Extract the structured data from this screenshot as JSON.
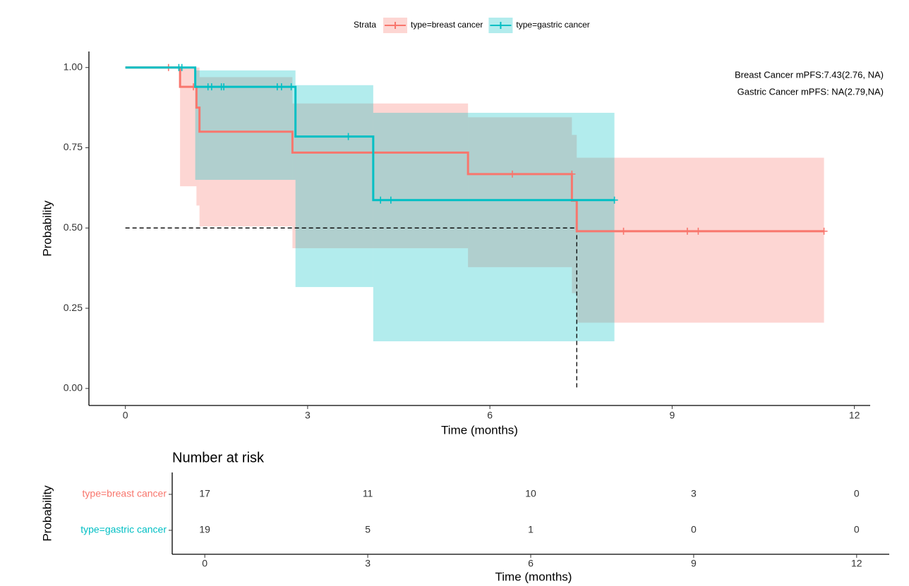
{
  "chart_data": [
    {
      "type": "survival",
      "legend_title": "Strata",
      "x_label": "Time (months)",
      "y_label": "Probability",
      "annotations": [
        "Breast Cancer mPFS:7.43(2.76, NA)",
        "Gastric Cancer mPFS: NA(2.79,NA)"
      ],
      "xlim": [
        -0.6,
        12.26
      ],
      "xticks": [
        0,
        3,
        6,
        9,
        12
      ],
      "ylim": [
        -0.053,
        1.05
      ],
      "yticks": [
        {
          "value": 0,
          "label": "0.00"
        },
        {
          "value": 0.25,
          "label": "0.25"
        },
        {
          "value": 0.5,
          "label": "0.50"
        },
        {
          "value": 0.75,
          "label": "0.75"
        },
        {
          "value": 1,
          "label": "1.00"
        }
      ],
      "median": {
        "x": 7.43,
        "y": 0.5
      },
      "series": [
        {
          "name": "type=breast cancer",
          "color": "#F8766D",
          "x": [
            0,
            0.9,
            1.17,
            1.22,
            2.75,
            5.64,
            7.35,
            7.43
          ],
          "values": [
            1,
            0.94,
            0.875,
            0.8,
            0.735,
            0.668,
            0.585,
            0.49
          ],
          "lower": [
            1,
            0.63,
            0.57,
            0.505,
            0.437,
            0.378,
            0.297,
            0.205
          ],
          "upper": [
            1,
            1,
            1,
            0.97,
            0.888,
            0.845,
            0.79,
            0.719
          ],
          "censor_x": [
            0.71,
            1.12,
            6.37,
            7.35,
            8.2,
            9.25,
            9.43,
            11.5
          ],
          "censor_y": [
            1,
            0.94,
            0.668,
            0.668,
            0.49,
            0.49,
            0.49,
            0.49
          ]
        },
        {
          "name": "type=gastric cancer",
          "color": "#00BFC4",
          "x": [
            0,
            1.15,
            2.8,
            4.08
          ],
          "values": [
            1,
            0.94,
            0.785,
            0.587
          ],
          "lower": [
            1,
            0.65,
            0.316,
            0.147
          ],
          "upper": [
            1,
            0.991,
            0.945,
            0.859
          ],
          "censor_x": [
            0.88,
            0.93,
            1.36,
            1.42,
            1.58,
            1.62,
            2.5,
            2.57,
            2.73,
            3.67,
            4.2,
            4.37,
            8.05
          ],
          "censor_y": [
            1,
            1,
            0.94,
            0.94,
            0.94,
            0.94,
            0.94,
            0.94,
            0.94,
            0.785,
            0.587,
            0.587,
            0.587
          ]
        }
      ]
    },
    {
      "type": "risk_table",
      "title": "Number at risk",
      "x_label": "Time (months)",
      "y_label": "Probability",
      "xlim": [
        -0.6,
        12.6
      ],
      "xticks": [
        0,
        3,
        6,
        9,
        12
      ],
      "x": [
        0,
        3,
        6,
        9,
        12
      ],
      "rows": [
        {
          "name": "type=breast cancer",
          "color": "#F8766D",
          "values": [
            17,
            11,
            10,
            3,
            0
          ]
        },
        {
          "name": "type=gastric cancer",
          "color": "#00BFC4",
          "values": [
            19,
            5,
            1,
            0,
            0
          ]
        }
      ]
    }
  ]
}
